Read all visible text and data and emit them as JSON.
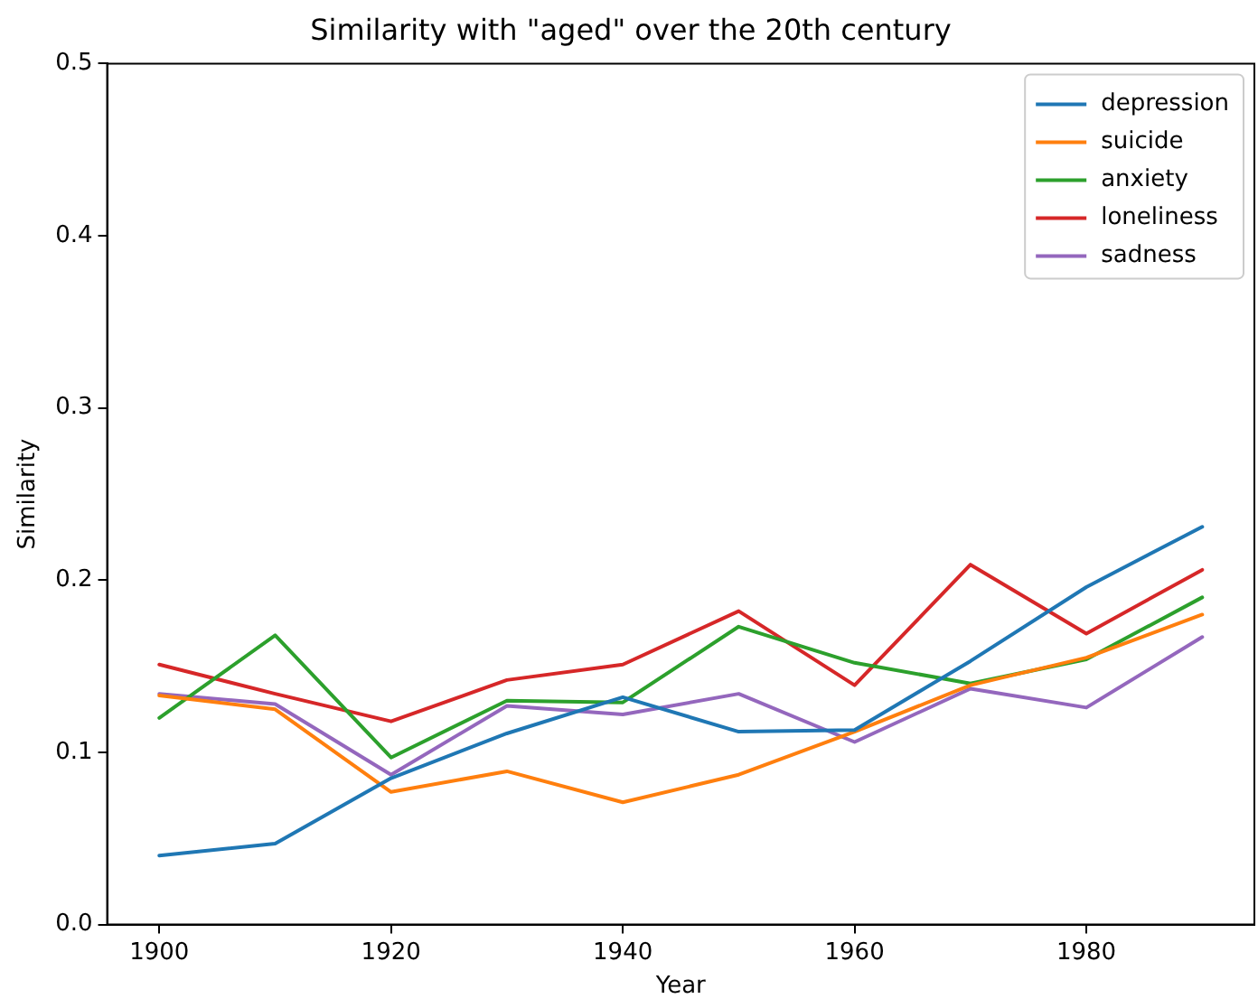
{
  "chart_data": {
    "type": "line",
    "title": "Similarity with \"aged\" over the 20th century",
    "xlabel": "Year",
    "ylabel": "Similarity",
    "x": [
      1900,
      1910,
      1920,
      1930,
      1940,
      1950,
      1960,
      1970,
      1980,
      1990
    ],
    "xlim": [
      1895.5,
      1994.5
    ],
    "xticks": [
      1900,
      1920,
      1940,
      1960,
      1980
    ],
    "ylim": [
      0,
      0.5
    ],
    "yticks": [
      {
        "value": 0,
        "label": "0.0"
      },
      {
        "value": 0.1,
        "label": "0.1"
      },
      {
        "value": 0.2,
        "label": "0.2"
      },
      {
        "value": 0.3,
        "label": "0.3"
      },
      {
        "value": 0.4,
        "label": "0.4"
      },
      {
        "value": 0.5,
        "label": "0.5"
      }
    ],
    "grid": false,
    "legend": "top right",
    "marker": "none",
    "line_style": "solid",
    "series": [
      {
        "name": "depression",
        "color": "#1f77b4",
        "values": [
          0.04,
          0.047,
          0.085,
          0.111,
          0.132,
          0.112,
          0.113,
          0.153,
          0.196,
          0.231
        ]
      },
      {
        "name": "suicide",
        "color": "#ff7f0e",
        "values": [
          0.133,
          0.125,
          0.077,
          0.089,
          0.071,
          0.087,
          0.112,
          0.139,
          0.155,
          0.18
        ]
      },
      {
        "name": "anxiety",
        "color": "#2ca02c",
        "values": [
          0.12,
          0.168,
          0.097,
          0.13,
          0.129,
          0.173,
          0.152,
          0.14,
          0.154,
          0.19
        ]
      },
      {
        "name": "loneliness",
        "color": "#d62728",
        "values": [
          0.151,
          0.134,
          0.118,
          0.142,
          0.151,
          0.182,
          0.139,
          0.209,
          0.169,
          0.206
        ]
      },
      {
        "name": "sadness",
        "color": "#9467bd",
        "values": [
          0.134,
          0.128,
          0.087,
          0.127,
          0.122,
          0.134,
          0.106,
          0.137,
          0.126,
          0.167
        ]
      }
    ]
  }
}
